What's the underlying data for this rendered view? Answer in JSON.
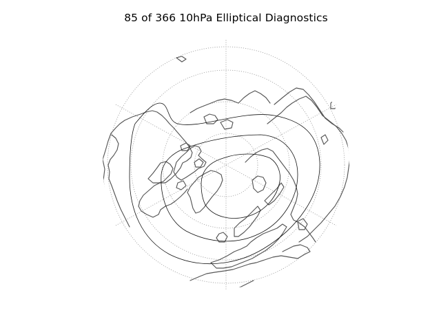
{
  "figure": {
    "title": "85 of 366 10hPa Elliptical Diagnostics"
  },
  "map": {
    "projection": "polar stereographic (north pole)",
    "graticule": "dotted grey",
    "coastline_color": "#555555",
    "contour_color": "#111111",
    "background_color": "#ffffff"
  }
}
